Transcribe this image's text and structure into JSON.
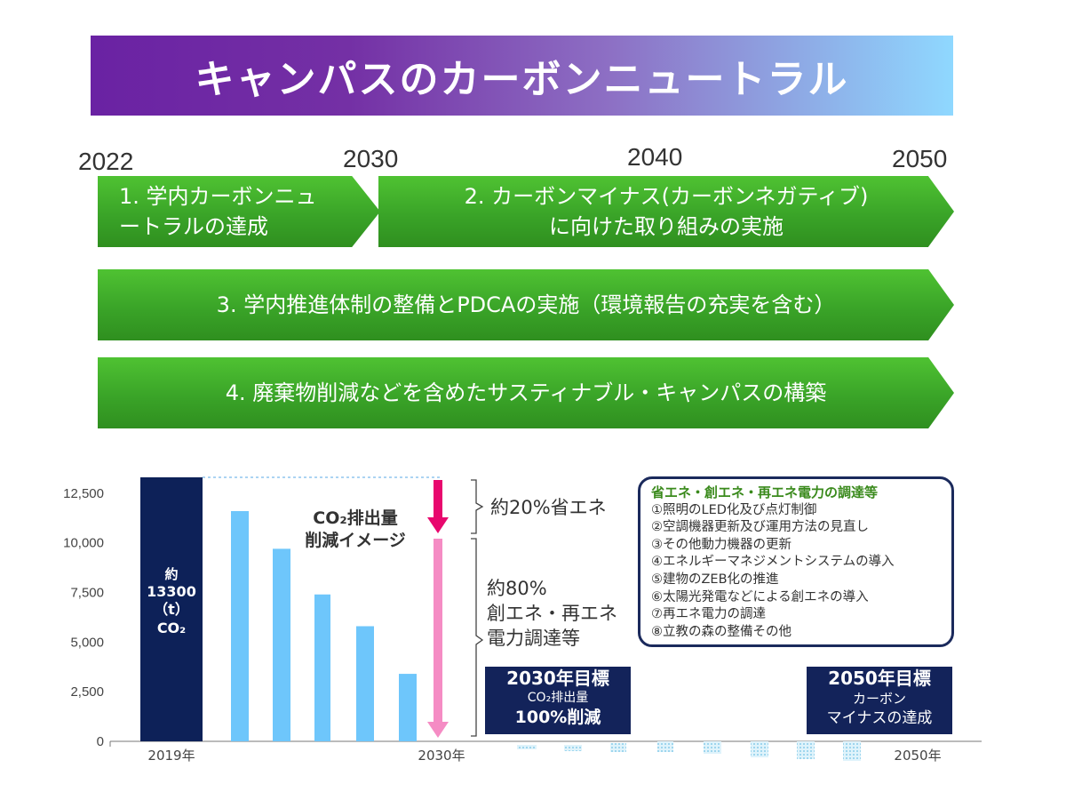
{
  "title": "キャンパスのカーボンニュートラル",
  "timeline": {
    "years": [
      "2022",
      "2030",
      "2040",
      "2050"
    ],
    "arrows": [
      {
        "lines": [
          "1. 学内カーボンニュ",
          "ートラルの達成"
        ]
      },
      {
        "lines": [
          "2. カーボンマイナス(カーボンネガティブ)",
          "に向けた取り組みの実施"
        ]
      },
      {
        "lines": [
          "3. 学内推進体制の整備とPDCAの実施（環境報告の充実を含む）"
        ]
      },
      {
        "lines": [
          "4. 廃棄物削減などを含めたサスティナブル・キャンパスの構築"
        ]
      }
    ]
  },
  "colors": {
    "baseline_bar": "#0d2158",
    "projection_bar": "#6ec6fb",
    "reduction_arrow_top": "#e8086e",
    "reduction_arrow_bottom": "#f58cc4",
    "arrow_green": "#3aa428",
    "target_box": "#13235a"
  },
  "chart_data": {
    "type": "bar",
    "ylim": [
      0,
      13300
    ],
    "yticks": [
      "12,500",
      "10,000",
      "7,500",
      "5,000",
      "2,500",
      "0"
    ],
    "ytick_values": [
      12500,
      10000,
      7500,
      5000,
      2500,
      0
    ],
    "x_labels": {
      "start": "2019年",
      "mid": "2030年",
      "end": "2050年"
    },
    "series": [
      {
        "values": [
          13300,
          11600,
          9700,
          7400,
          5800,
          3400
        ]
      }
    ],
    "baseline_label": [
      "約",
      "13300",
      "（t）",
      "CO₂"
    ],
    "annotation": [
      "CO₂排出量",
      "削減イメージ"
    ],
    "reductions": [
      {
        "label": "約20%省エネ"
      },
      {
        "lines": [
          "約80%",
          "創エネ・再エネ",
          "電力調達等"
        ]
      }
    ]
  },
  "measures": {
    "title": "省エネ・創エネ・再エネ電力の調達等",
    "items": [
      "①照明のLED化及び点灯制御",
      "②空調機器更新及び運用方法の見直し",
      "③その他動力機器の更新",
      "④エネルギーマネジメントシステムの導入",
      "⑤建物のZEB化の推進",
      "⑥太陽光発電などによる創エネの導入",
      "⑦再エネ電力の調達",
      "⑧立教の森の整備その他"
    ]
  },
  "targets": [
    {
      "lines": [
        "2030年目標",
        "CO₂排出量",
        "100%削減"
      ]
    },
    {
      "lines": [
        "2050年目標",
        "カーボン",
        "マイナスの達成"
      ]
    }
  ]
}
